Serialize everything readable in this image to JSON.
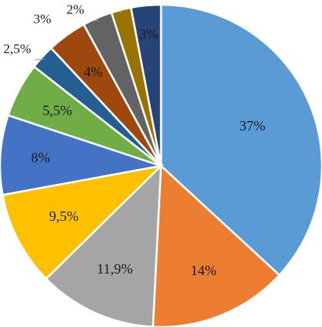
{
  "chart_data": {
    "type": "pie",
    "title": "",
    "start_angle_deg": 0,
    "direction": "clockwise",
    "slices": [
      {
        "label": "37%",
        "value": 37.0,
        "color": "#5B9BD5"
      },
      {
        "label": "14%",
        "value": 14.0,
        "color": "#ED7D31"
      },
      {
        "label": "11,9%",
        "value": 11.9,
        "color": "#A5A5A5"
      },
      {
        "label": "9,5%",
        "value": 9.5,
        "color": "#FFC000"
      },
      {
        "label": "8%",
        "value": 8.0,
        "color": "#4472C4"
      },
      {
        "label": "5,5%",
        "value": 5.5,
        "color": "#70AD47"
      },
      {
        "label": "2,5%",
        "value": 2.5,
        "color": "#255E91"
      },
      {
        "label": "4%",
        "value": 4.0,
        "color": "#9E480E"
      },
      {
        "label": "3%",
        "value": 3.0,
        "color": "#636363"
      },
      {
        "label": "2%",
        "value": 2.0,
        "color": "#997300"
      },
      {
        "label": "3%",
        "value": 3.0,
        "color": "#264478"
      }
    ]
  }
}
